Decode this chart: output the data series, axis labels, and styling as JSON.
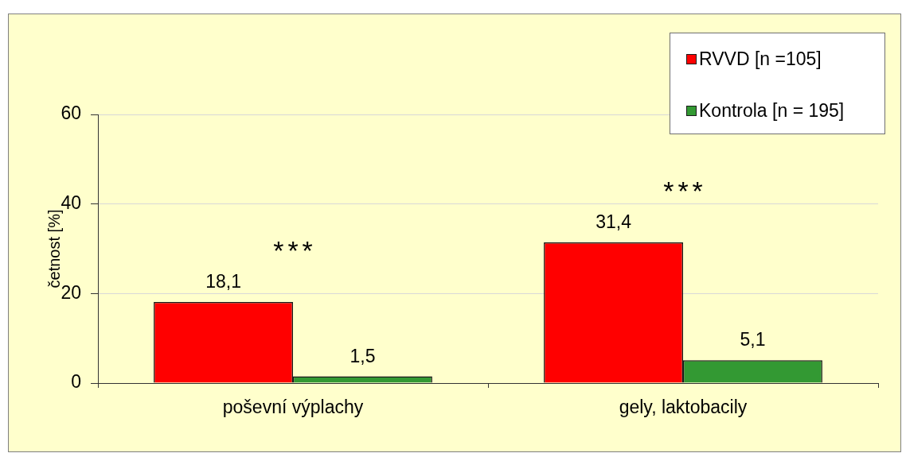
{
  "chart_data": {
    "type": "bar",
    "categories": [
      "poševní výplachy",
      "gely, laktobacily"
    ],
    "series": [
      {
        "name": "RVVD [n =105]",
        "color": "#ff0000",
        "values": [
          18.1,
          31.4
        ],
        "value_labels": [
          "18,1",
          "31,4"
        ]
      },
      {
        "name": "Kontrola [n = 195]",
        "color": "#339933",
        "values": [
          1.5,
          5.1
        ],
        "value_labels": [
          "1,5",
          "5,1"
        ]
      }
    ],
    "ylabel": "četnost [%]",
    "ylim": [
      0,
      60
    ],
    "yticks": [
      0,
      20,
      40,
      60
    ],
    "grid": "y",
    "legend": "top right",
    "annotations": [
      "***",
      "***"
    ]
  }
}
